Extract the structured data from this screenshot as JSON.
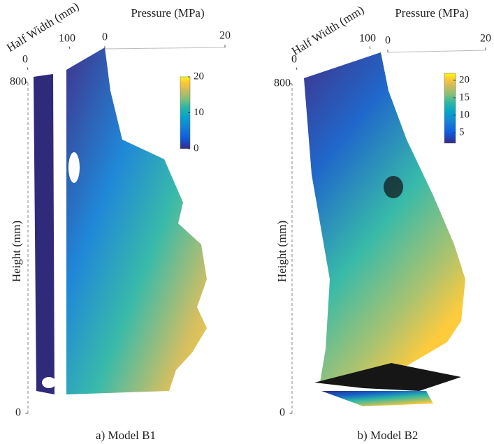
{
  "chart_data": [
    {
      "type": "surface",
      "caption": "a) Model B1",
      "xlabel": "Half Width (mm)",
      "ylabel": "Pressure (MPa)",
      "zlabel": "Height (mm)",
      "xlim": [
        0,
        100
      ],
      "xticks": [
        0,
        100
      ],
      "ylim": [
        0,
        20
      ],
      "yticks": [
        0,
        20
      ],
      "zlim": [
        0,
        800
      ],
      "zticks": [
        0,
        800
      ],
      "colorbar": {
        "clim": [
          0,
          20
        ],
        "ticks": [
          0,
          10,
          20
        ]
      }
    },
    {
      "type": "surface",
      "caption": "b) Model B2",
      "xlabel": "Half Width (mm)",
      "ylabel": "Pressure (MPa)",
      "zlabel": "Height (mm)",
      "xlim": [
        0,
        100
      ],
      "xticks": [
        0,
        100
      ],
      "ylim": [
        0,
        20
      ],
      "yticks": [
        0,
        20
      ],
      "zlim": [
        0,
        800
      ],
      "zticks": [
        0,
        800
      ],
      "colorbar": {
        "clim": [
          2,
          22
        ],
        "ticks": [
          5,
          10,
          15,
          20
        ]
      }
    }
  ]
}
